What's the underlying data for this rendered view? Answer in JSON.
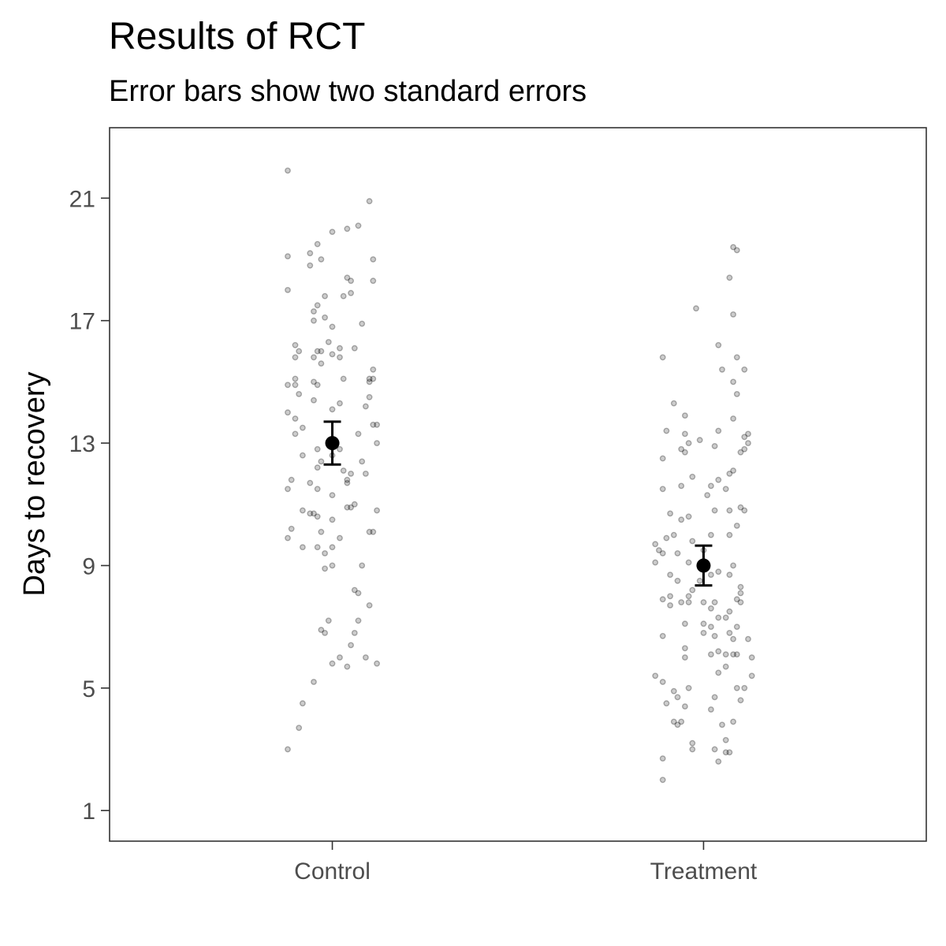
{
  "chart_data": {
    "type": "scatter",
    "title": "Results of RCT",
    "subtitle": "Error bars show two standard errors",
    "xlabel": "",
    "ylabel": "Days to recovery",
    "categories": [
      "Control",
      "Treatment"
    ],
    "yticks": [
      1,
      5,
      9,
      13,
      17,
      21
    ],
    "ylim": [
      0.0,
      23.3
    ],
    "grid": false,
    "legend": "none",
    "colors": {
      "points": "#000000",
      "summary": "#000000",
      "frame": "#333333"
    },
    "point_opacity": 0.2,
    "summary": [
      {
        "category": "Control",
        "mean": 13.0,
        "lower": 12.3,
        "upper": 13.7
      },
      {
        "category": "Treatment",
        "mean": 9.0,
        "lower": 8.35,
        "upper": 9.65
      }
    ],
    "series": [
      {
        "category": "Control",
        "points": [
          [
            -0.12,
            21.9
          ],
          [
            0.1,
            20.9
          ],
          [
            0.07,
            20.1
          ],
          [
            0.04,
            20.0
          ],
          [
            0.0,
            19.9
          ],
          [
            -0.04,
            19.5
          ],
          [
            -0.06,
            19.2
          ],
          [
            -0.12,
            19.1
          ],
          [
            -0.03,
            19.0
          ],
          [
            0.11,
            19.0
          ],
          [
            -0.06,
            18.8
          ],
          [
            0.04,
            18.4
          ],
          [
            0.05,
            18.3
          ],
          [
            0.11,
            18.3
          ],
          [
            -0.12,
            18.0
          ],
          [
            0.05,
            17.9
          ],
          [
            0.03,
            17.8
          ],
          [
            -0.02,
            17.8
          ],
          [
            -0.04,
            17.5
          ],
          [
            -0.05,
            17.3
          ],
          [
            -0.02,
            17.1
          ],
          [
            -0.05,
            17.0
          ],
          [
            0.08,
            16.9
          ],
          [
            0.0,
            16.8
          ],
          [
            -0.01,
            16.3
          ],
          [
            -0.1,
            16.2
          ],
          [
            0.06,
            16.1
          ],
          [
            0.02,
            16.1
          ],
          [
            -0.09,
            16.0
          ],
          [
            -0.04,
            16.0
          ],
          [
            -0.03,
            16.0
          ],
          [
            0.0,
            15.9
          ],
          [
            -0.1,
            15.8
          ],
          [
            -0.05,
            15.8
          ],
          [
            0.02,
            15.8
          ],
          [
            -0.03,
            15.6
          ],
          [
            0.11,
            15.4
          ],
          [
            -0.1,
            15.1
          ],
          [
            -0.05,
            15.0
          ],
          [
            -0.04,
            14.9
          ],
          [
            0.1,
            15.1
          ],
          [
            0.11,
            15.1
          ],
          [
            -0.12,
            14.9
          ],
          [
            -0.1,
            14.9
          ],
          [
            0.03,
            15.1
          ],
          [
            0.1,
            15.0
          ],
          [
            -0.09,
            14.6
          ],
          [
            0.1,
            14.5
          ],
          [
            -0.05,
            14.4
          ],
          [
            0.02,
            14.3
          ],
          [
            0.09,
            14.2
          ],
          [
            -0.1,
            13.8
          ],
          [
            0.0,
            14.1
          ],
          [
            -0.12,
            14.0
          ],
          [
            0.11,
            13.6
          ],
          [
            0.12,
            13.6
          ],
          [
            -0.08,
            13.5
          ],
          [
            -0.1,
            13.3
          ],
          [
            0.07,
            13.3
          ],
          [
            0.12,
            13.0
          ],
          [
            -0.01,
            13.0
          ],
          [
            0.02,
            12.8
          ],
          [
            -0.04,
            12.8
          ],
          [
            0.0,
            12.6
          ],
          [
            -0.08,
            12.6
          ],
          [
            -0.03,
            12.4
          ],
          [
            0.08,
            12.4
          ],
          [
            -0.04,
            12.2
          ],
          [
            0.03,
            12.1
          ],
          [
            0.05,
            12.0
          ],
          [
            0.09,
            12.0
          ],
          [
            -0.11,
            11.8
          ],
          [
            0.04,
            11.8
          ],
          [
            0.04,
            11.7
          ],
          [
            -0.06,
            11.7
          ],
          [
            -0.04,
            11.5
          ],
          [
            -0.12,
            11.5
          ],
          [
            0.0,
            11.3
          ],
          [
            0.06,
            11.0
          ],
          [
            0.04,
            10.9
          ],
          [
            0.05,
            10.9
          ],
          [
            -0.08,
            10.8
          ],
          [
            -0.06,
            10.7
          ],
          [
            -0.05,
            10.7
          ],
          [
            0.12,
            10.8
          ],
          [
            -0.04,
            10.6
          ],
          [
            0.0,
            10.5
          ],
          [
            -0.11,
            10.2
          ],
          [
            -0.03,
            10.1
          ],
          [
            0.02,
            9.9
          ],
          [
            -0.12,
            9.9
          ],
          [
            0.1,
            10.1
          ],
          [
            0.11,
            10.1
          ],
          [
            0.0,
            9.6
          ],
          [
            -0.08,
            9.6
          ],
          [
            -0.04,
            9.6
          ],
          [
            -0.02,
            9.4
          ],
          [
            0.08,
            9.0
          ],
          [
            0.0,
            9.0
          ],
          [
            -0.02,
            8.9
          ],
          [
            0.06,
            8.2
          ],
          [
            0.07,
            8.1
          ],
          [
            0.1,
            7.7
          ],
          [
            -0.01,
            7.2
          ],
          [
            0.07,
            7.2
          ],
          [
            -0.03,
            6.9
          ],
          [
            -0.02,
            6.8
          ],
          [
            0.06,
            6.8
          ],
          [
            0.05,
            6.4
          ],
          [
            0.02,
            6.0
          ],
          [
            0.09,
            6.0
          ],
          [
            0.12,
            5.8
          ],
          [
            0.04,
            5.7
          ],
          [
            0.0,
            5.8
          ],
          [
            -0.05,
            5.2
          ],
          [
            -0.08,
            4.5
          ],
          [
            -0.09,
            3.7
          ],
          [
            -0.12,
            3.0
          ]
        ]
      },
      {
        "category": "Treatment",
        "points": [
          [
            0.08,
            19.4
          ],
          [
            0.09,
            19.3
          ],
          [
            0.07,
            18.4
          ],
          [
            0.08,
            17.2
          ],
          [
            -0.02,
            17.4
          ],
          [
            0.04,
            16.2
          ],
          [
            0.09,
            15.8
          ],
          [
            -0.11,
            15.8
          ],
          [
            0.05,
            15.4
          ],
          [
            0.11,
            15.4
          ],
          [
            0.08,
            15.0
          ],
          [
            0.09,
            14.6
          ],
          [
            -0.08,
            14.3
          ],
          [
            -0.05,
            13.9
          ],
          [
            0.08,
            13.8
          ],
          [
            -0.1,
            13.4
          ],
          [
            0.04,
            13.4
          ],
          [
            0.12,
            13.3
          ],
          [
            0.11,
            13.2
          ],
          [
            -0.05,
            13.3
          ],
          [
            -0.01,
            13.1
          ],
          [
            -0.04,
            13.0
          ],
          [
            0.12,
            13.0
          ],
          [
            0.03,
            12.9
          ],
          [
            -0.06,
            12.8
          ],
          [
            -0.05,
            12.7
          ],
          [
            0.11,
            12.8
          ],
          [
            0.1,
            12.7
          ],
          [
            -0.11,
            12.5
          ],
          [
            0.08,
            12.1
          ],
          [
            0.07,
            12.0
          ],
          [
            -0.03,
            11.9
          ],
          [
            0.04,
            11.8
          ],
          [
            0.02,
            11.6
          ],
          [
            -0.06,
            11.6
          ],
          [
            -0.11,
            11.5
          ],
          [
            0.06,
            11.5
          ],
          [
            0.01,
            11.3
          ],
          [
            0.1,
            10.9
          ],
          [
            0.11,
            10.8
          ],
          [
            0.03,
            10.8
          ],
          [
            0.07,
            10.8
          ],
          [
            -0.09,
            10.7
          ],
          [
            -0.04,
            10.6
          ],
          [
            -0.06,
            10.5
          ],
          [
            0.09,
            10.3
          ],
          [
            0.07,
            10.0
          ],
          [
            0.02,
            10.0
          ],
          [
            -0.08,
            10.0
          ],
          [
            -0.1,
            9.9
          ],
          [
            -0.03,
            9.8
          ],
          [
            -0.13,
            9.7
          ],
          [
            -0.12,
            9.5
          ],
          [
            0.0,
            9.5
          ],
          [
            -0.07,
            9.4
          ],
          [
            -0.11,
            9.4
          ],
          [
            -0.04,
            9.1
          ],
          [
            -0.13,
            9.1
          ],
          [
            0.08,
            9.0
          ],
          [
            -0.09,
            8.7
          ],
          [
            0.04,
            8.8
          ],
          [
            0.02,
            8.7
          ],
          [
            0.07,
            8.7
          ],
          [
            -0.07,
            8.5
          ],
          [
            -0.01,
            8.5
          ],
          [
            -0.03,
            8.2
          ],
          [
            0.1,
            8.3
          ],
          [
            0.1,
            8.1
          ],
          [
            -0.04,
            8.0
          ],
          [
            -0.09,
            8.0
          ],
          [
            -0.11,
            7.9
          ],
          [
            0.09,
            7.9
          ],
          [
            -0.06,
            7.8
          ],
          [
            -0.04,
            7.8
          ],
          [
            0.03,
            7.8
          ],
          [
            0.0,
            7.8
          ],
          [
            -0.09,
            7.7
          ],
          [
            0.1,
            7.8
          ],
          [
            0.02,
            7.6
          ],
          [
            0.07,
            7.5
          ],
          [
            0.04,
            7.3
          ],
          [
            0.06,
            7.3
          ],
          [
            0.02,
            7.0
          ],
          [
            -0.05,
            7.1
          ],
          [
            0.0,
            7.1
          ],
          [
            0.09,
            7.0
          ],
          [
            0.0,
            6.8
          ],
          [
            0.07,
            6.8
          ],
          [
            0.03,
            6.7
          ],
          [
            0.08,
            6.6
          ],
          [
            0.12,
            6.6
          ],
          [
            -0.11,
            6.7
          ],
          [
            0.08,
            6.1
          ],
          [
            0.06,
            6.1
          ],
          [
            0.04,
            6.2
          ],
          [
            0.13,
            6.0
          ],
          [
            -0.05,
            6.3
          ],
          [
            0.02,
            6.1
          ],
          [
            0.09,
            6.1
          ],
          [
            -0.05,
            6.0
          ],
          [
            0.04,
            5.5
          ],
          [
            0.06,
            5.7
          ],
          [
            0.13,
            5.4
          ],
          [
            -0.13,
            5.4
          ],
          [
            -0.11,
            5.2
          ],
          [
            -0.04,
            5.0
          ],
          [
            -0.08,
            4.9
          ],
          [
            0.09,
            5.0
          ],
          [
            0.11,
            5.0
          ],
          [
            -0.07,
            4.7
          ],
          [
            0.1,
            4.6
          ],
          [
            0.03,
            4.7
          ],
          [
            -0.1,
            4.5
          ],
          [
            -0.05,
            4.4
          ],
          [
            0.02,
            4.3
          ],
          [
            -0.08,
            3.9
          ],
          [
            0.08,
            3.9
          ],
          [
            -0.07,
            3.8
          ],
          [
            -0.06,
            3.9
          ],
          [
            0.05,
            3.8
          ],
          [
            -0.03,
            3.2
          ],
          [
            0.06,
            3.3
          ],
          [
            -0.03,
            3.0
          ],
          [
            0.03,
            3.0
          ],
          [
            0.06,
            2.9
          ],
          [
            0.07,
            2.9
          ],
          [
            -0.11,
            2.7
          ],
          [
            0.04,
            2.6
          ],
          [
            -0.11,
            2.0
          ]
        ]
      }
    ]
  }
}
